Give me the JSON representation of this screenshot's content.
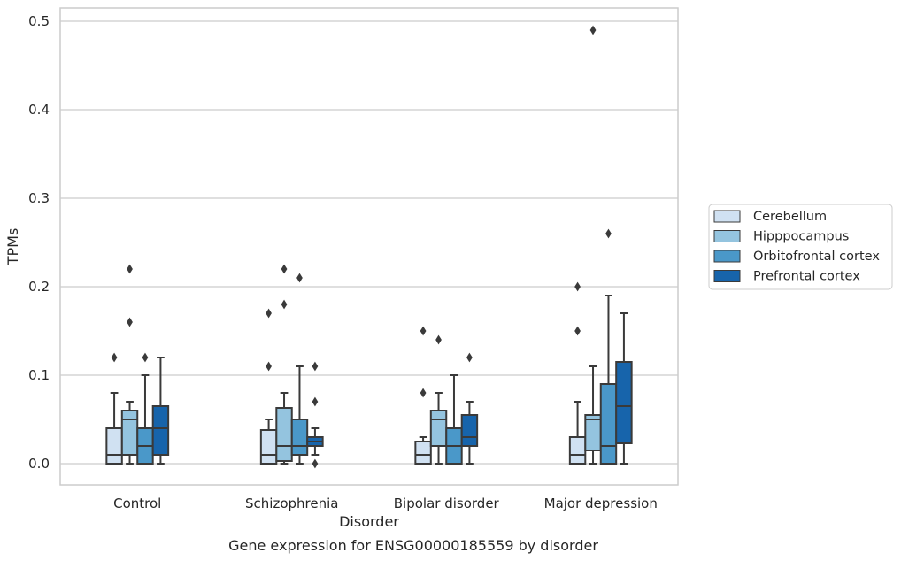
{
  "chart_data": {
    "type": "boxplot",
    "title": "",
    "caption": "Gene expression for ENSG00000185559 by disorder",
    "xlabel": "Disorder",
    "ylabel": "TPMs",
    "ylim": [
      -0.024,
      0.515
    ],
    "yticks": [
      0.0,
      0.1,
      0.2,
      0.3,
      0.4,
      0.5
    ],
    "ytick_labels": [
      "0.0",
      "0.1",
      "0.2",
      "0.3",
      "0.4",
      "0.5"
    ],
    "categories": [
      "Control",
      "Schizophrenia",
      "Bipolar disorder",
      "Major depression"
    ],
    "grid": true,
    "legend_position": "right",
    "series": [
      {
        "name": "Cerebellum",
        "color": "#d0e1f2",
        "boxes": [
          {
            "q1": 0.0,
            "median": 0.01,
            "q3": 0.04,
            "whisker_low": 0.0,
            "whisker_high": 0.08,
            "outliers": [
              0.12
            ]
          },
          {
            "q1": 0.0,
            "median": 0.01,
            "q3": 0.038,
            "whisker_low": 0.0,
            "whisker_high": 0.05,
            "outliers": [
              0.11,
              0.17
            ]
          },
          {
            "q1": 0.0,
            "median": 0.01,
            "q3": 0.025,
            "whisker_low": 0.0,
            "whisker_high": 0.03,
            "outliers": [
              0.08,
              0.15
            ]
          },
          {
            "q1": 0.0,
            "median": 0.01,
            "q3": 0.03,
            "whisker_low": 0.0,
            "whisker_high": 0.07,
            "outliers": [
              0.15,
              0.2
            ]
          }
        ]
      },
      {
        "name": "Hipppocampus",
        "color": "#94c4df",
        "boxes": [
          {
            "q1": 0.01,
            "median": 0.05,
            "q3": 0.06,
            "whisker_low": 0.0,
            "whisker_high": 0.07,
            "outliers": [
              0.16,
              0.22
            ]
          },
          {
            "q1": 0.003,
            "median": 0.02,
            "q3": 0.063,
            "whisker_low": 0.0,
            "whisker_high": 0.08,
            "outliers": [
              0.18,
              0.22
            ]
          },
          {
            "q1": 0.02,
            "median": 0.05,
            "q3": 0.06,
            "whisker_low": 0.0,
            "whisker_high": 0.08,
            "outliers": [
              0.14
            ]
          },
          {
            "q1": 0.015,
            "median": 0.05,
            "q3": 0.055,
            "whisker_low": 0.0,
            "whisker_high": 0.11,
            "outliers": [
              0.49
            ]
          }
        ]
      },
      {
        "name": "Orbitofrontal cortex",
        "color": "#4a98c9",
        "boxes": [
          {
            "q1": 0.0,
            "median": 0.02,
            "q3": 0.04,
            "whisker_low": 0.0,
            "whisker_high": 0.1,
            "outliers": [
              0.12
            ]
          },
          {
            "q1": 0.01,
            "median": 0.02,
            "q3": 0.05,
            "whisker_low": 0.0,
            "whisker_high": 0.11,
            "outliers": [
              0.21
            ]
          },
          {
            "q1": 0.0,
            "median": 0.02,
            "q3": 0.04,
            "whisker_low": 0.0,
            "whisker_high": 0.1,
            "outliers": []
          },
          {
            "q1": 0.0,
            "median": 0.02,
            "q3": 0.09,
            "whisker_low": 0.0,
            "whisker_high": 0.19,
            "outliers": [
              0.26
            ]
          }
        ]
      },
      {
        "name": "Prefrontal cortex",
        "color": "#1764ab",
        "boxes": [
          {
            "q1": 0.01,
            "median": 0.04,
            "q3": 0.065,
            "whisker_low": 0.0,
            "whisker_high": 0.12,
            "outliers": []
          },
          {
            "q1": 0.02,
            "median": 0.025,
            "q3": 0.03,
            "whisker_low": 0.01,
            "whisker_high": 0.04,
            "outliers": [
              0.0,
              0.07,
              0.11
            ]
          },
          {
            "q1": 0.02,
            "median": 0.03,
            "q3": 0.055,
            "whisker_low": 0.0,
            "whisker_high": 0.07,
            "outliers": [
              0.12
            ]
          },
          {
            "q1": 0.023,
            "median": 0.065,
            "q3": 0.115,
            "whisker_low": 0.0,
            "whisker_high": 0.17,
            "outliers": []
          }
        ]
      }
    ]
  },
  "colors": {
    "grid": "#cccccc",
    "frame": "#cccccc",
    "line": "#3a3a3a"
  }
}
